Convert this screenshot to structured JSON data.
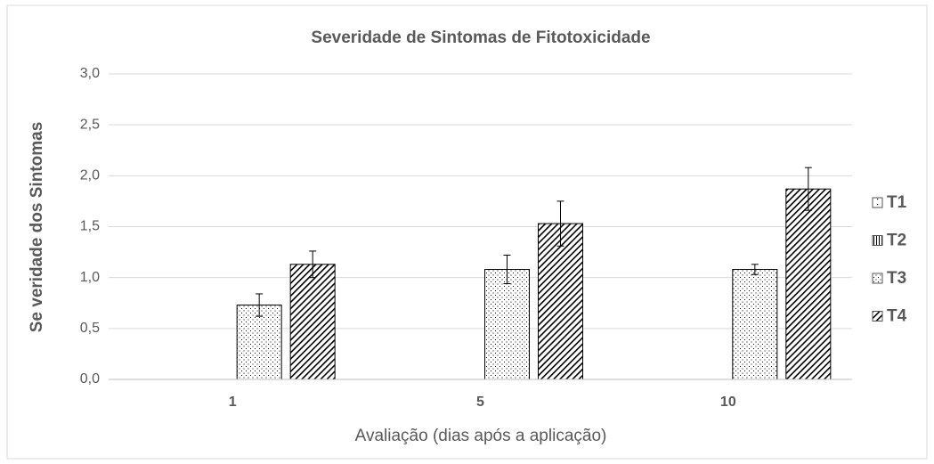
{
  "chart_data": {
    "type": "bar",
    "title": "Severidade de Sintomas de Fitotoxicidade",
    "xlabel": "Avaliação  (dias após a aplicação)",
    "ylabel": "Se veridade dos Sintomas",
    "categories": [
      "1",
      "5",
      "10"
    ],
    "series": [
      {
        "name": "T1",
        "color": "#000000",
        "pattern": "sparse-dots",
        "values": [
          0,
          0,
          0
        ],
        "errors": [
          0,
          0,
          0
        ]
      },
      {
        "name": "T2",
        "color": "#000000",
        "pattern": "vertical-lines",
        "values": [
          0,
          0,
          0
        ],
        "errors": [
          0,
          0,
          0
        ]
      },
      {
        "name": "T3",
        "color": "#000000",
        "pattern": "dots",
        "values": [
          0.73,
          1.08,
          1.08
        ],
        "errors": [
          0.11,
          0.14,
          0.05
        ]
      },
      {
        "name": "T4",
        "color": "#000000",
        "pattern": "diagonal",
        "values": [
          1.13,
          1.53,
          1.87
        ],
        "errors": [
          0.13,
          0.22,
          0.21
        ]
      }
    ],
    "ylim": [
      0,
      3
    ],
    "yticks": [
      {
        "value": 0,
        "label": "0,0"
      },
      {
        "value": 0.5,
        "label": "0,5"
      },
      {
        "value": 1,
        "label": "1,0"
      },
      {
        "value": 1.5,
        "label": "1,5"
      },
      {
        "value": 2,
        "label": "2,0"
      },
      {
        "value": 2.5,
        "label": "2,5"
      },
      {
        "value": 3,
        "label": "3,0"
      }
    ],
    "grid": true,
    "legend": "right"
  }
}
